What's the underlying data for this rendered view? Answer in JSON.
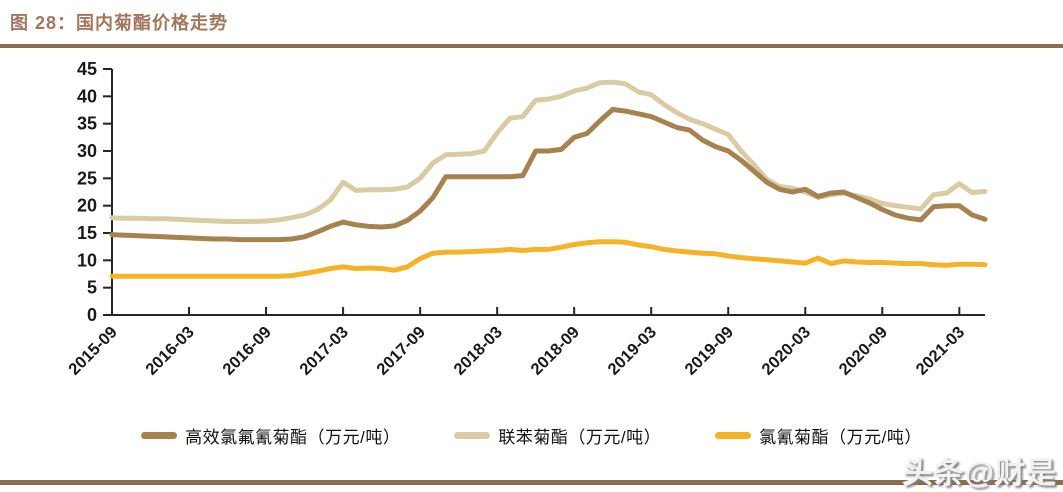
{
  "header": {
    "title": "图 28：国内菊酯价格走势"
  },
  "watermark": "头条@财是",
  "colors": {
    "title": "#a1785f",
    "rule": "#8a6e4b",
    "axis": "#262626",
    "tick_label": "#1a1a1a"
  },
  "chart_data": {
    "type": "line",
    "title": "国内菊酯价格走势",
    "x_start": "2015-09",
    "x_frequency": "monthly",
    "x_tick_labels": [
      "2015-09",
      "2016-03",
      "2016-09",
      "2017-03",
      "2017-09",
      "2018-03",
      "2018-09",
      "2019-03",
      "2019-09",
      "2020-03",
      "2020-09",
      "2021-03"
    ],
    "x_tick_every": 6,
    "ylim": [
      0,
      45
    ],
    "y_tick_step": 5,
    "grid": false,
    "legend_position": "bottom",
    "series": [
      {
        "name": "高效氯氟氰菊酯（万元/吨）",
        "color": "#a6824f",
        "values": [
          14.7,
          14.6,
          14.5,
          14.4,
          14.3,
          14.2,
          14.1,
          14.0,
          13.9,
          13.9,
          13.8,
          13.8,
          13.8,
          13.8,
          13.9,
          14.3,
          15.2,
          16.2,
          17.0,
          16.5,
          16.2,
          16.1,
          16.3,
          17.3,
          19.0,
          21.5,
          25.3,
          25.3,
          25.3,
          25.3,
          25.3,
          25.3,
          25.5,
          30.0,
          30.0,
          30.3,
          32.5,
          33.2,
          35.5,
          37.6,
          37.3,
          36.8,
          36.3,
          35.3,
          34.3,
          33.8,
          32.0,
          30.8,
          30.0,
          28.3,
          26.3,
          24.3,
          23.0,
          22.5,
          23.0,
          21.7,
          22.3,
          22.5,
          21.5,
          20.5,
          19.3,
          18.3,
          17.7,
          17.4,
          19.8,
          20.0,
          20.0,
          18.3,
          17.5
        ]
      },
      {
        "name": "联苯菊酯（万元/吨）",
        "color": "#d9cba4",
        "values": [
          17.8,
          17.7,
          17.7,
          17.6,
          17.6,
          17.5,
          17.4,
          17.3,
          17.2,
          17.1,
          17.1,
          17.1,
          17.2,
          17.4,
          17.8,
          18.3,
          19.3,
          21.0,
          24.3,
          22.8,
          22.9,
          22.9,
          23.0,
          23.4,
          25.0,
          27.8,
          29.3,
          29.4,
          29.5,
          30.0,
          33.3,
          36.0,
          36.3,
          39.3,
          39.5,
          40.0,
          41.0,
          41.5,
          42.5,
          42.6,
          42.3,
          40.8,
          40.3,
          38.5,
          37.0,
          35.8,
          35.0,
          34.0,
          33.0,
          30.0,
          27.5,
          24.8,
          23.5,
          23.2,
          22.5,
          21.5,
          22.0,
          22.3,
          21.8,
          21.2,
          20.4,
          20.0,
          19.7,
          19.4,
          22.0,
          22.3,
          24.0,
          22.4,
          22.6
        ]
      },
      {
        "name": "氯氰菊酯（万元/吨）",
        "color": "#f5b327",
        "values": [
          7.1,
          7.1,
          7.1,
          7.1,
          7.1,
          7.1,
          7.1,
          7.1,
          7.1,
          7.1,
          7.1,
          7.1,
          7.1,
          7.1,
          7.2,
          7.6,
          8.0,
          8.5,
          8.8,
          8.5,
          8.6,
          8.5,
          8.2,
          8.8,
          10.3,
          11.3,
          11.5,
          11.5,
          11.6,
          11.7,
          11.8,
          12.0,
          11.8,
          12.0,
          12.0,
          12.4,
          12.9,
          13.2,
          13.4,
          13.4,
          13.3,
          12.8,
          12.5,
          12.0,
          11.7,
          11.5,
          11.3,
          11.2,
          10.8,
          10.5,
          10.3,
          10.1,
          9.9,
          9.7,
          9.5,
          10.4,
          9.4,
          9.9,
          9.7,
          9.6,
          9.6,
          9.5,
          9.4,
          9.4,
          9.2,
          9.1,
          9.3,
          9.3,
          9.2
        ]
      }
    ]
  }
}
